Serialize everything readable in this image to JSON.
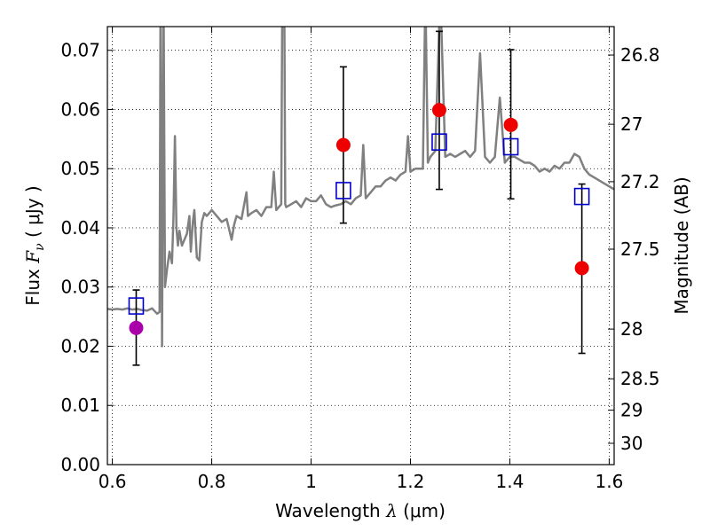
{
  "chart_data": {
    "type": "scatter",
    "xlabel": "Wavelength  λ (μm)",
    "ylabel": "Flux  F_ν  ( μJy )",
    "ylabel_right": "Magnitude (AB)",
    "xlim": [
      0.59,
      1.61
    ],
    "ylim": [
      0.0,
      0.074
    ],
    "grid": true,
    "x_ticks": [
      {
        "value": 0.6,
        "label": "0.6"
      },
      {
        "value": 0.8,
        "label": "0.8"
      },
      {
        "value": 1.0,
        "label": "1"
      },
      {
        "value": 1.2,
        "label": "1.2"
      },
      {
        "value": 1.4,
        "label": "1.4"
      },
      {
        "value": 1.6,
        "label": "1.6"
      }
    ],
    "y_ticks": [
      {
        "value": 0.0,
        "label": "0.00"
      },
      {
        "value": 0.01,
        "label": "0.01"
      },
      {
        "value": 0.02,
        "label": "0.02"
      },
      {
        "value": 0.03,
        "label": "0.03"
      },
      {
        "value": 0.04,
        "label": "0.04"
      },
      {
        "value": 0.05,
        "label": "0.05"
      },
      {
        "value": 0.06,
        "label": "0.06"
      },
      {
        "value": 0.07,
        "label": "0.07"
      }
    ],
    "right_ticks": [
      {
        "flux": 0.0692,
        "label": "26.8"
      },
      {
        "flux": 0.0575,
        "label": "27"
      },
      {
        "flux": 0.0478,
        "label": "27.2"
      },
      {
        "flux": 0.0364,
        "label": "27.5"
      },
      {
        "flux": 0.0229,
        "label": "28"
      },
      {
        "flux": 0.0145,
        "label": "28.5"
      },
      {
        "flux": 0.0092,
        "label": "29"
      },
      {
        "flux": 0.0036,
        "label": "30"
      }
    ],
    "series": [
      {
        "kind": "model_spectrum",
        "color": "#808080",
        "points": [
          [
            0.59,
            0.0263
          ],
          [
            0.6,
            0.0262
          ],
          [
            0.61,
            0.0263
          ],
          [
            0.62,
            0.0262
          ],
          [
            0.63,
            0.0264
          ],
          [
            0.64,
            0.0262
          ],
          [
            0.65,
            0.0263
          ],
          [
            0.66,
            0.0261
          ],
          [
            0.67,
            0.026
          ],
          [
            0.68,
            0.0264
          ],
          [
            0.69,
            0.0255
          ],
          [
            0.695,
            0.0258
          ],
          [
            0.697,
            0.08
          ],
          [
            0.7,
            0.02
          ],
          [
            0.703,
            0.08
          ],
          [
            0.706,
            0.03
          ],
          [
            0.71,
            0.033
          ],
          [
            0.715,
            0.036
          ],
          [
            0.72,
            0.034
          ],
          [
            0.723,
            0.042
          ],
          [
            0.726,
            0.0555
          ],
          [
            0.729,
            0.04
          ],
          [
            0.732,
            0.037
          ],
          [
            0.735,
            0.0395
          ],
          [
            0.74,
            0.037
          ],
          [
            0.745,
            0.038
          ],
          [
            0.75,
            0.039
          ],
          [
            0.755,
            0.042
          ],
          [
            0.758,
            0.036
          ],
          [
            0.762,
            0.041
          ],
          [
            0.765,
            0.043
          ],
          [
            0.77,
            0.035
          ],
          [
            0.775,
            0.0345
          ],
          [
            0.78,
            0.041
          ],
          [
            0.785,
            0.0425
          ],
          [
            0.79,
            0.042
          ],
          [
            0.8,
            0.043
          ],
          [
            0.81,
            0.042
          ],
          [
            0.82,
            0.041
          ],
          [
            0.83,
            0.0415
          ],
          [
            0.84,
            0.038
          ],
          [
            0.845,
            0.0405
          ],
          [
            0.85,
            0.042
          ],
          [
            0.86,
            0.0415
          ],
          [
            0.87,
            0.046
          ],
          [
            0.873,
            0.042
          ],
          [
            0.88,
            0.0425
          ],
          [
            0.89,
            0.043
          ],
          [
            0.9,
            0.042
          ],
          [
            0.91,
            0.0435
          ],
          [
            0.92,
            0.0435
          ],
          [
            0.925,
            0.0495
          ],
          [
            0.93,
            0.043
          ],
          [
            0.94,
            0.044
          ],
          [
            0.942,
            0.08
          ],
          [
            0.946,
            0.08
          ],
          [
            0.948,
            0.044
          ],
          [
            0.95,
            0.0435
          ],
          [
            0.96,
            0.044
          ],
          [
            0.97,
            0.0445
          ],
          [
            0.98,
            0.0435
          ],
          [
            0.99,
            0.045
          ],
          [
            1.0,
            0.0445
          ],
          [
            1.01,
            0.0445
          ],
          [
            1.02,
            0.0455
          ],
          [
            1.03,
            0.044
          ],
          [
            1.04,
            0.0435
          ],
          [
            1.05,
            0.0438
          ],
          [
            1.06,
            0.044
          ],
          [
            1.07,
            0.0445
          ],
          [
            1.08,
            0.044
          ],
          [
            1.09,
            0.045
          ],
          [
            1.1,
            0.0455
          ],
          [
            1.105,
            0.054
          ],
          [
            1.11,
            0.045
          ],
          [
            1.12,
            0.046
          ],
          [
            1.13,
            0.047
          ],
          [
            1.14,
            0.047
          ],
          [
            1.15,
            0.048
          ],
          [
            1.16,
            0.0485
          ],
          [
            1.17,
            0.048
          ],
          [
            1.18,
            0.049
          ],
          [
            1.19,
            0.0495
          ],
          [
            1.195,
            0.0555
          ],
          [
            1.2,
            0.0495
          ],
          [
            1.21,
            0.05
          ],
          [
            1.22,
            0.05
          ],
          [
            1.225,
            0.05
          ],
          [
            1.23,
            0.08
          ],
          [
            1.235,
            0.051
          ],
          [
            1.24,
            0.052
          ],
          [
            1.25,
            0.053
          ],
          [
            1.26,
            0.08
          ],
          [
            1.27,
            0.052
          ],
          [
            1.28,
            0.0525
          ],
          [
            1.29,
            0.052
          ],
          [
            1.3,
            0.0525
          ],
          [
            1.31,
            0.053
          ],
          [
            1.32,
            0.052
          ],
          [
            1.33,
            0.053
          ],
          [
            1.34,
            0.0695
          ],
          [
            1.35,
            0.052
          ],
          [
            1.36,
            0.051
          ],
          [
            1.37,
            0.052
          ],
          [
            1.38,
            0.062
          ],
          [
            1.39,
            0.051
          ],
          [
            1.4,
            0.052
          ],
          [
            1.41,
            0.052
          ],
          [
            1.42,
            0.0515
          ],
          [
            1.43,
            0.051
          ],
          [
            1.44,
            0.051
          ],
          [
            1.45,
            0.0505
          ],
          [
            1.46,
            0.0495
          ],
          [
            1.47,
            0.05
          ],
          [
            1.48,
            0.0495
          ],
          [
            1.49,
            0.0505
          ],
          [
            1.5,
            0.05
          ],
          [
            1.51,
            0.051
          ],
          [
            1.52,
            0.051
          ],
          [
            1.53,
            0.0525
          ],
          [
            1.54,
            0.052
          ],
          [
            1.55,
            0.05
          ],
          [
            1.56,
            0.049
          ],
          [
            1.57,
            0.0485
          ],
          [
            1.58,
            0.048
          ],
          [
            1.59,
            0.0475
          ],
          [
            1.6,
            0.047
          ],
          [
            1.61,
            0.0465
          ]
        ]
      },
      {
        "kind": "observed_with_errors",
        "marker": "square",
        "color": "#0000cc",
        "points": [
          {
            "x": 0.648,
            "y": 0.0268,
            "err_lo": 0.0168,
            "err_hi": 0.0295
          },
          {
            "x": 1.065,
            "y": 0.0463,
            "err_lo": 0.0408,
            "err_hi": 0.0672
          },
          {
            "x": 1.258,
            "y": 0.0545,
            "err_lo": 0.0465,
            "err_hi": 0.0732
          },
          {
            "x": 1.402,
            "y": 0.0537,
            "err_lo": 0.0449,
            "err_hi": 0.0701
          },
          {
            "x": 1.545,
            "y": 0.0453,
            "err_lo": 0.0188,
            "err_hi": 0.0474
          }
        ]
      },
      {
        "kind": "model_photometry",
        "marker": "circle",
        "points": [
          {
            "x": 0.648,
            "y": 0.0231,
            "color": "#aa00aa"
          },
          {
            "x": 1.065,
            "y": 0.054,
            "color": "#ee0000"
          },
          {
            "x": 1.258,
            "y": 0.0599,
            "color": "#ee0000"
          },
          {
            "x": 1.402,
            "y": 0.0574,
            "color": "#ee0000"
          },
          {
            "x": 1.545,
            "y": 0.0332,
            "color": "#ee0000"
          }
        ]
      }
    ]
  }
}
